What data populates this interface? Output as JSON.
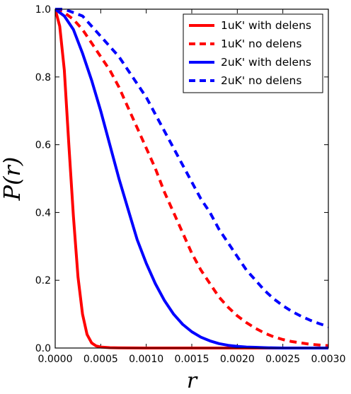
{
  "chart_data": {
    "type": "line",
    "xlabel": "r",
    "ylabel": "P(r)",
    "xlim": [
      0.0,
      0.003
    ],
    "ylim": [
      0.0,
      1.0
    ],
    "xticks": [
      0.0,
      0.0005,
      0.001,
      0.0015,
      0.002,
      0.0025,
      0.003
    ],
    "xtick_labels": [
      "0.0000",
      "0.0005",
      "0.0010",
      "0.0015",
      "0.0020",
      "0.0025",
      "0.0030"
    ],
    "yticks": [
      0.0,
      0.2,
      0.4,
      0.6,
      0.8,
      1.0
    ],
    "ytick_labels": [
      "0.0",
      "0.2",
      "0.4",
      "0.6",
      "0.8",
      "1.0"
    ],
    "grid": false,
    "legend_position": "top-right",
    "series": [
      {
        "name": "1uK' with delens",
        "color": "#ff0000",
        "style": "solid",
        "x": [
          0.0,
          5e-05,
          0.0001,
          0.00015,
          0.0002,
          0.00025,
          0.0003,
          0.00035,
          0.0004,
          0.00045,
          0.0005,
          0.0006,
          0.0007,
          0.001,
          0.002,
          0.003
        ],
        "y": [
          1.0,
          0.95,
          0.82,
          0.6,
          0.39,
          0.21,
          0.1,
          0.04,
          0.015,
          0.006,
          0.003,
          0.001,
          0.0005,
          0.0,
          0.0,
          0.0
        ]
      },
      {
        "name": "1uK' no delens",
        "color": "#ff0000",
        "style": "dashed",
        "x": [
          0.0,
          0.0001,
          0.0002,
          0.0003,
          0.0004,
          0.0005,
          0.0006,
          0.0007,
          0.0008,
          0.0009,
          0.001,
          0.0011,
          0.0012,
          0.0013,
          0.0014,
          0.0015,
          0.0016,
          0.0017,
          0.0018,
          0.0019,
          0.002,
          0.0021,
          0.0022,
          0.0023,
          0.0024,
          0.0025,
          0.0026,
          0.0027,
          0.0028,
          0.0029,
          0.003
        ],
        "y": [
          1.0,
          0.99,
          0.97,
          0.94,
          0.9,
          0.86,
          0.82,
          0.77,
          0.71,
          0.65,
          0.59,
          0.53,
          0.46,
          0.4,
          0.34,
          0.28,
          0.23,
          0.19,
          0.15,
          0.12,
          0.095,
          0.075,
          0.058,
          0.044,
          0.033,
          0.025,
          0.019,
          0.015,
          0.011,
          0.009,
          0.007
        ]
      },
      {
        "name": "2uK' with delens",
        "color": "#0000ff",
        "style": "solid",
        "x": [
          0.0,
          0.0001,
          0.0002,
          0.0003,
          0.0004,
          0.0005,
          0.0006,
          0.0007,
          0.0008,
          0.0009,
          0.001,
          0.0011,
          0.0012,
          0.0013,
          0.0014,
          0.0015,
          0.0016,
          0.0017,
          0.0018,
          0.0019,
          0.002,
          0.0021,
          0.0022,
          0.0023,
          0.0024,
          0.0025,
          0.003
        ],
        "y": [
          1.0,
          0.98,
          0.94,
          0.87,
          0.79,
          0.7,
          0.6,
          0.5,
          0.41,
          0.32,
          0.25,
          0.19,
          0.14,
          0.1,
          0.07,
          0.048,
          0.032,
          0.021,
          0.013,
          0.008,
          0.005,
          0.003,
          0.002,
          0.001,
          0.0005,
          0.0,
          0.0
        ]
      },
      {
        "name": "2uK' no delens",
        "color": "#0000ff",
        "style": "dashed",
        "x": [
          0.0,
          0.0001,
          0.0002,
          0.0003,
          0.0004,
          0.0005,
          0.0006,
          0.0007,
          0.0008,
          0.0009,
          0.001,
          0.0011,
          0.0012,
          0.0013,
          0.0014,
          0.0015,
          0.0016,
          0.0017,
          0.0018,
          0.0019,
          0.002,
          0.0021,
          0.0022,
          0.0023,
          0.0024,
          0.0025,
          0.0026,
          0.0027,
          0.0028,
          0.0029,
          0.003
        ],
        "y": [
          1.0,
          1.0,
          0.99,
          0.98,
          0.95,
          0.92,
          0.89,
          0.86,
          0.82,
          0.78,
          0.74,
          0.69,
          0.64,
          0.59,
          0.54,
          0.49,
          0.44,
          0.4,
          0.35,
          0.31,
          0.27,
          0.23,
          0.2,
          0.17,
          0.145,
          0.125,
          0.108,
          0.094,
          0.082,
          0.072,
          0.063
        ]
      }
    ]
  }
}
